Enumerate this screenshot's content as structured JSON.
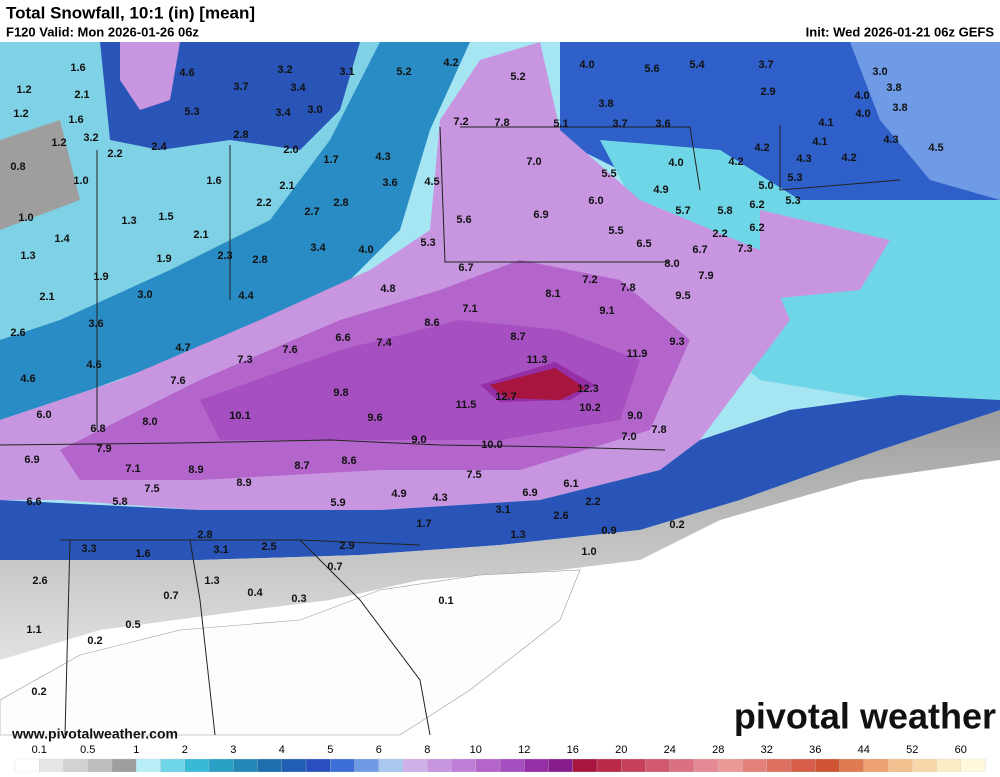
{
  "header": {
    "title": "Total Snowfall, 10:1 (in) [mean]",
    "valid": "F120 Valid: Mon 2026-01-26 06z",
    "init": "Init: Wed 2026-01-21 06z GEFS"
  },
  "map": {
    "labels": [
      "1.6",
      "4.6",
      "3.2",
      "3.1",
      "5.2",
      "4.2",
      "5.2",
      "4.0",
      "5.6",
      "5.4",
      "3.7",
      "3.0",
      "1.2",
      "2.1",
      "3.7",
      "3.4",
      "2.9",
      "3.8",
      "4.0",
      "1.2",
      "1.6",
      "5.3",
      "3.4",
      "3.0",
      "3.8",
      "4.0",
      "3.8",
      "7.2",
      "7.8",
      "5.1",
      "3.7",
      "3.6",
      "4.1",
      "1.2",
      "3.2",
      "2.4",
      "2.8",
      "2.0",
      "4.1",
      "4.3",
      "4.5",
      "2.2",
      "1.7",
      "4.3",
      "7.0",
      "4.2",
      "4.3",
      "4.2",
      "0.8",
      "1.6",
      "2.1",
      "3.6",
      "4.5",
      "5.5",
      "4.0",
      "4.2",
      "1.0",
      "4.9",
      "5.0",
      "5.3",
      "6.0",
      "2.2",
      "2.8",
      "6.9",
      "5.7",
      "5.8",
      "6.2",
      "5.3",
      "1.0",
      "1.3",
      "1.5",
      "2.7",
      "5.6",
      "6.2",
      "1.4",
      "2.1",
      "3.4",
      "4.0",
      "5.3",
      "5.5",
      "6.5",
      "2.2",
      "7.3",
      "1.3",
      "1.9",
      "2.3",
      "2.8",
      "6.7",
      "6.7",
      "8.0",
      "1.9",
      "7.2",
      "7.9",
      "2.1",
      "3.0",
      "4.4",
      "4.8",
      "8.1",
      "7.8",
      "9.5",
      "3.6",
      "8.6",
      "7.1",
      "9.1",
      "2.6",
      "6.6",
      "7.4",
      "8.7",
      "9.3",
      "4.7",
      "7.6",
      "11.3",
      "11.9",
      "4.6",
      "7.3",
      "4.6",
      "7.6",
      "9.8",
      "12.3",
      "12.7",
      "11.5",
      "10.2",
      "6.0",
      "8.0",
      "10.1",
      "9.6",
      "9.0",
      "6.8",
      "7.8",
      "9.0",
      "10.0",
      "7.0",
      "7.9",
      "6.9",
      "7.1",
      "8.9",
      "8.7",
      "8.6",
      "7.5",
      "7.5",
      "8.9",
      "4.9",
      "4.3",
      "6.9",
      "6.1",
      "6.6",
      "5.8",
      "5.9",
      "2.2",
      "3.1",
      "2.6",
      "1.7",
      "1.3",
      "0.9",
      "0.2",
      "2.8",
      "2.9",
      "3.3",
      "1.6",
      "3.1",
      "2.5",
      "1.0",
      "0.7",
      "2.6",
      "1.3",
      "0.7",
      "0.4",
      "0.3",
      "0.1",
      "0.5",
      "1.1",
      "0.2",
      "0.2"
    ]
  },
  "legend": {
    "ticks": [
      0.1,
      0.5,
      1,
      2,
      3,
      4,
      5,
      6,
      8,
      10,
      12,
      16,
      20,
      24,
      28,
      32,
      36,
      44,
      52,
      60
    ],
    "colors": [
      "#ffffff",
      "#e6e6e6",
      "#d2d2d2",
      "#bdbdbd",
      "#9e9e9e",
      "#b9f0f8",
      "#6fd6e8",
      "#38b9d6",
      "#2ba0c6",
      "#2589b8",
      "#1f6fb0",
      "#1e5fb5",
      "#2a4fc0",
      "#3d6ed8",
      "#6f9be6",
      "#a8c8f0",
      "#d0b0e8",
      "#c896e0",
      "#bf7ed8",
      "#b465cc",
      "#a64fc0",
      "#952fa6",
      "#871c8c",
      "#a8153e",
      "#b82a48",
      "#c6405a",
      "#d15870",
      "#db7080",
      "#e58a95",
      "#ea9a96",
      "#e4827a",
      "#dd6f60",
      "#d65d48",
      "#cf5535",
      "#e07a50",
      "#eda070",
      "#f3c090",
      "#f8d8a8",
      "#fbecc6",
      "#fff8dc"
    ]
  },
  "footer": {
    "website": "www.pivotalweather.com",
    "logo": "pivotal weather"
  }
}
